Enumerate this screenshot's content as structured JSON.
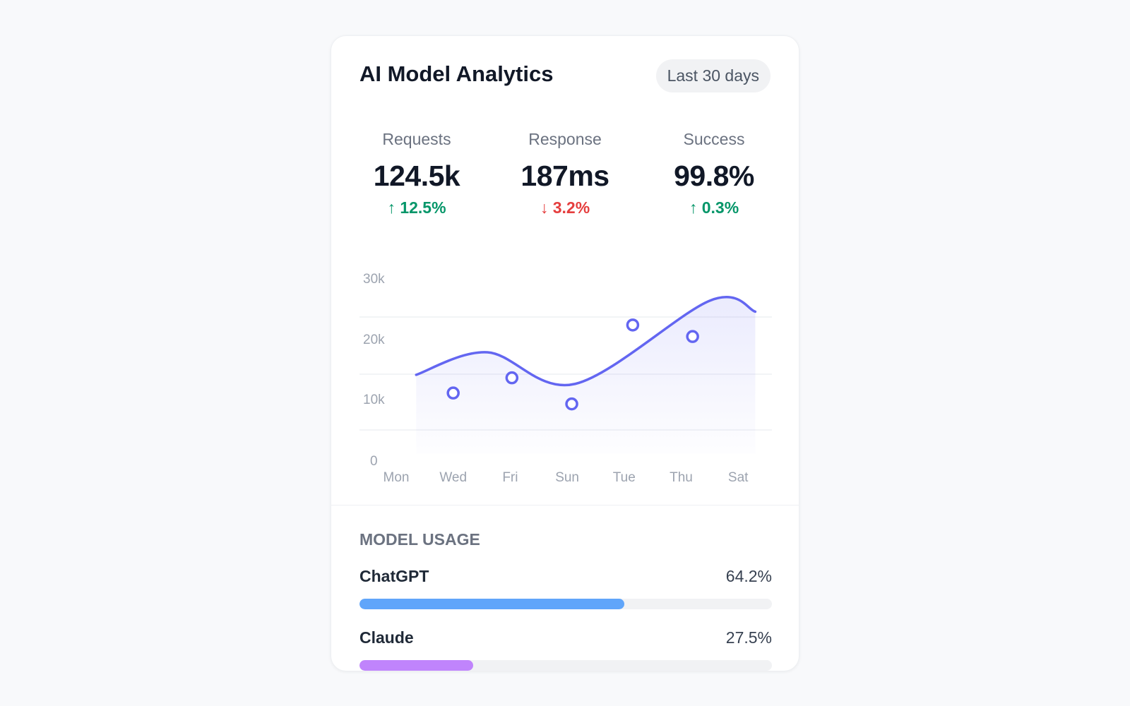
{
  "header": {
    "title": "AI Model Analytics",
    "range": "Last 30 days"
  },
  "stats": [
    {
      "label": "Requests",
      "value": "124.5k",
      "change": "12.5%",
      "direction": "up",
      "icon": "arrow-up-icon"
    },
    {
      "label": "Response",
      "value": "187ms",
      "change": "3.2%",
      "direction": "down",
      "icon": "arrow-down-icon"
    },
    {
      "label": "Success",
      "value": "99.8%",
      "change": "0.3%",
      "direction": "up",
      "icon": "arrow-up-icon"
    }
  ],
  "chart_data": {
    "type": "line",
    "y_ticks": [
      "30k",
      "20k",
      "10k",
      "0"
    ],
    "ylim": [
      0,
      30
    ],
    "categories": [
      "Mon",
      "Wed",
      "Fri",
      "Sun",
      "Tue",
      "Thu",
      "Sat"
    ],
    "grid": true,
    "color": "#6366f1",
    "trend_line": {
      "x": [
        0.35,
        1.6,
        3.14,
        5.5,
        6.3
      ],
      "y": [
        14.9,
        18.6,
        13.4,
        27.1,
        25.3
      ]
    },
    "points": {
      "x": [
        1.0,
        2.03,
        3.08,
        4.15,
        5.2
      ],
      "y": [
        11.9,
        14.4,
        10.1,
        23.1,
        21.2
      ]
    }
  },
  "usage": {
    "title": "MODEL USAGE",
    "models": [
      {
        "name": "ChatGPT",
        "percent_label": "64.2%",
        "percent": 64.2,
        "color": "#60a5fa"
      },
      {
        "name": "Claude",
        "percent_label": "27.5%",
        "percent": 27.5,
        "color": "#c084fc"
      }
    ]
  }
}
